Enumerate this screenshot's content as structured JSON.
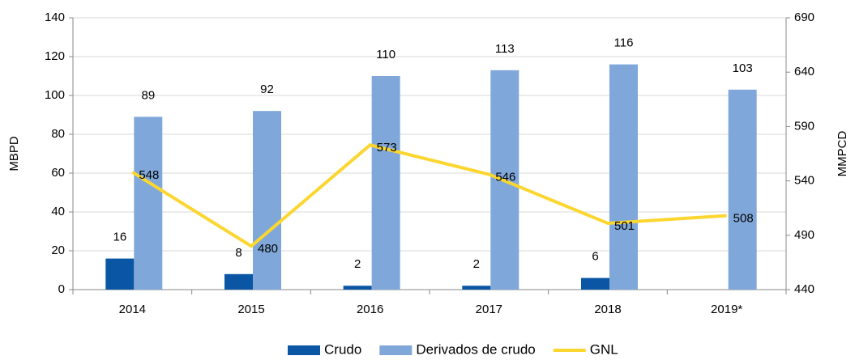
{
  "chart_data": {
    "type": "bar-line",
    "categories": [
      "2014",
      "2015",
      "2016",
      "2017",
      "2018",
      "2019*"
    ],
    "series": [
      {
        "name": "Crudo",
        "type": "bar",
        "color": "#0b56a4",
        "values": [
          16,
          8,
          2,
          2,
          6,
          null
        ]
      },
      {
        "name": "Derivados de crudo",
        "type": "bar",
        "color": "#7fa7d9",
        "values": [
          89,
          92,
          110,
          113,
          116,
          103
        ]
      },
      {
        "name": "GNL",
        "type": "line",
        "axis": "y2",
        "color": "#fcd630",
        "values": [
          548,
          480,
          573,
          546,
          501,
          508
        ]
      }
    ],
    "ylabel": "MBPD",
    "y2label": "MMPCD",
    "ylim": [
      0,
      140
    ],
    "yticks": [
      0,
      20,
      40,
      60,
      80,
      100,
      120,
      140
    ],
    "y2lim": [
      440,
      690
    ],
    "y2ticks": [
      440,
      490,
      540,
      590,
      640,
      690
    ],
    "grid": true,
    "legend": "bottom"
  }
}
